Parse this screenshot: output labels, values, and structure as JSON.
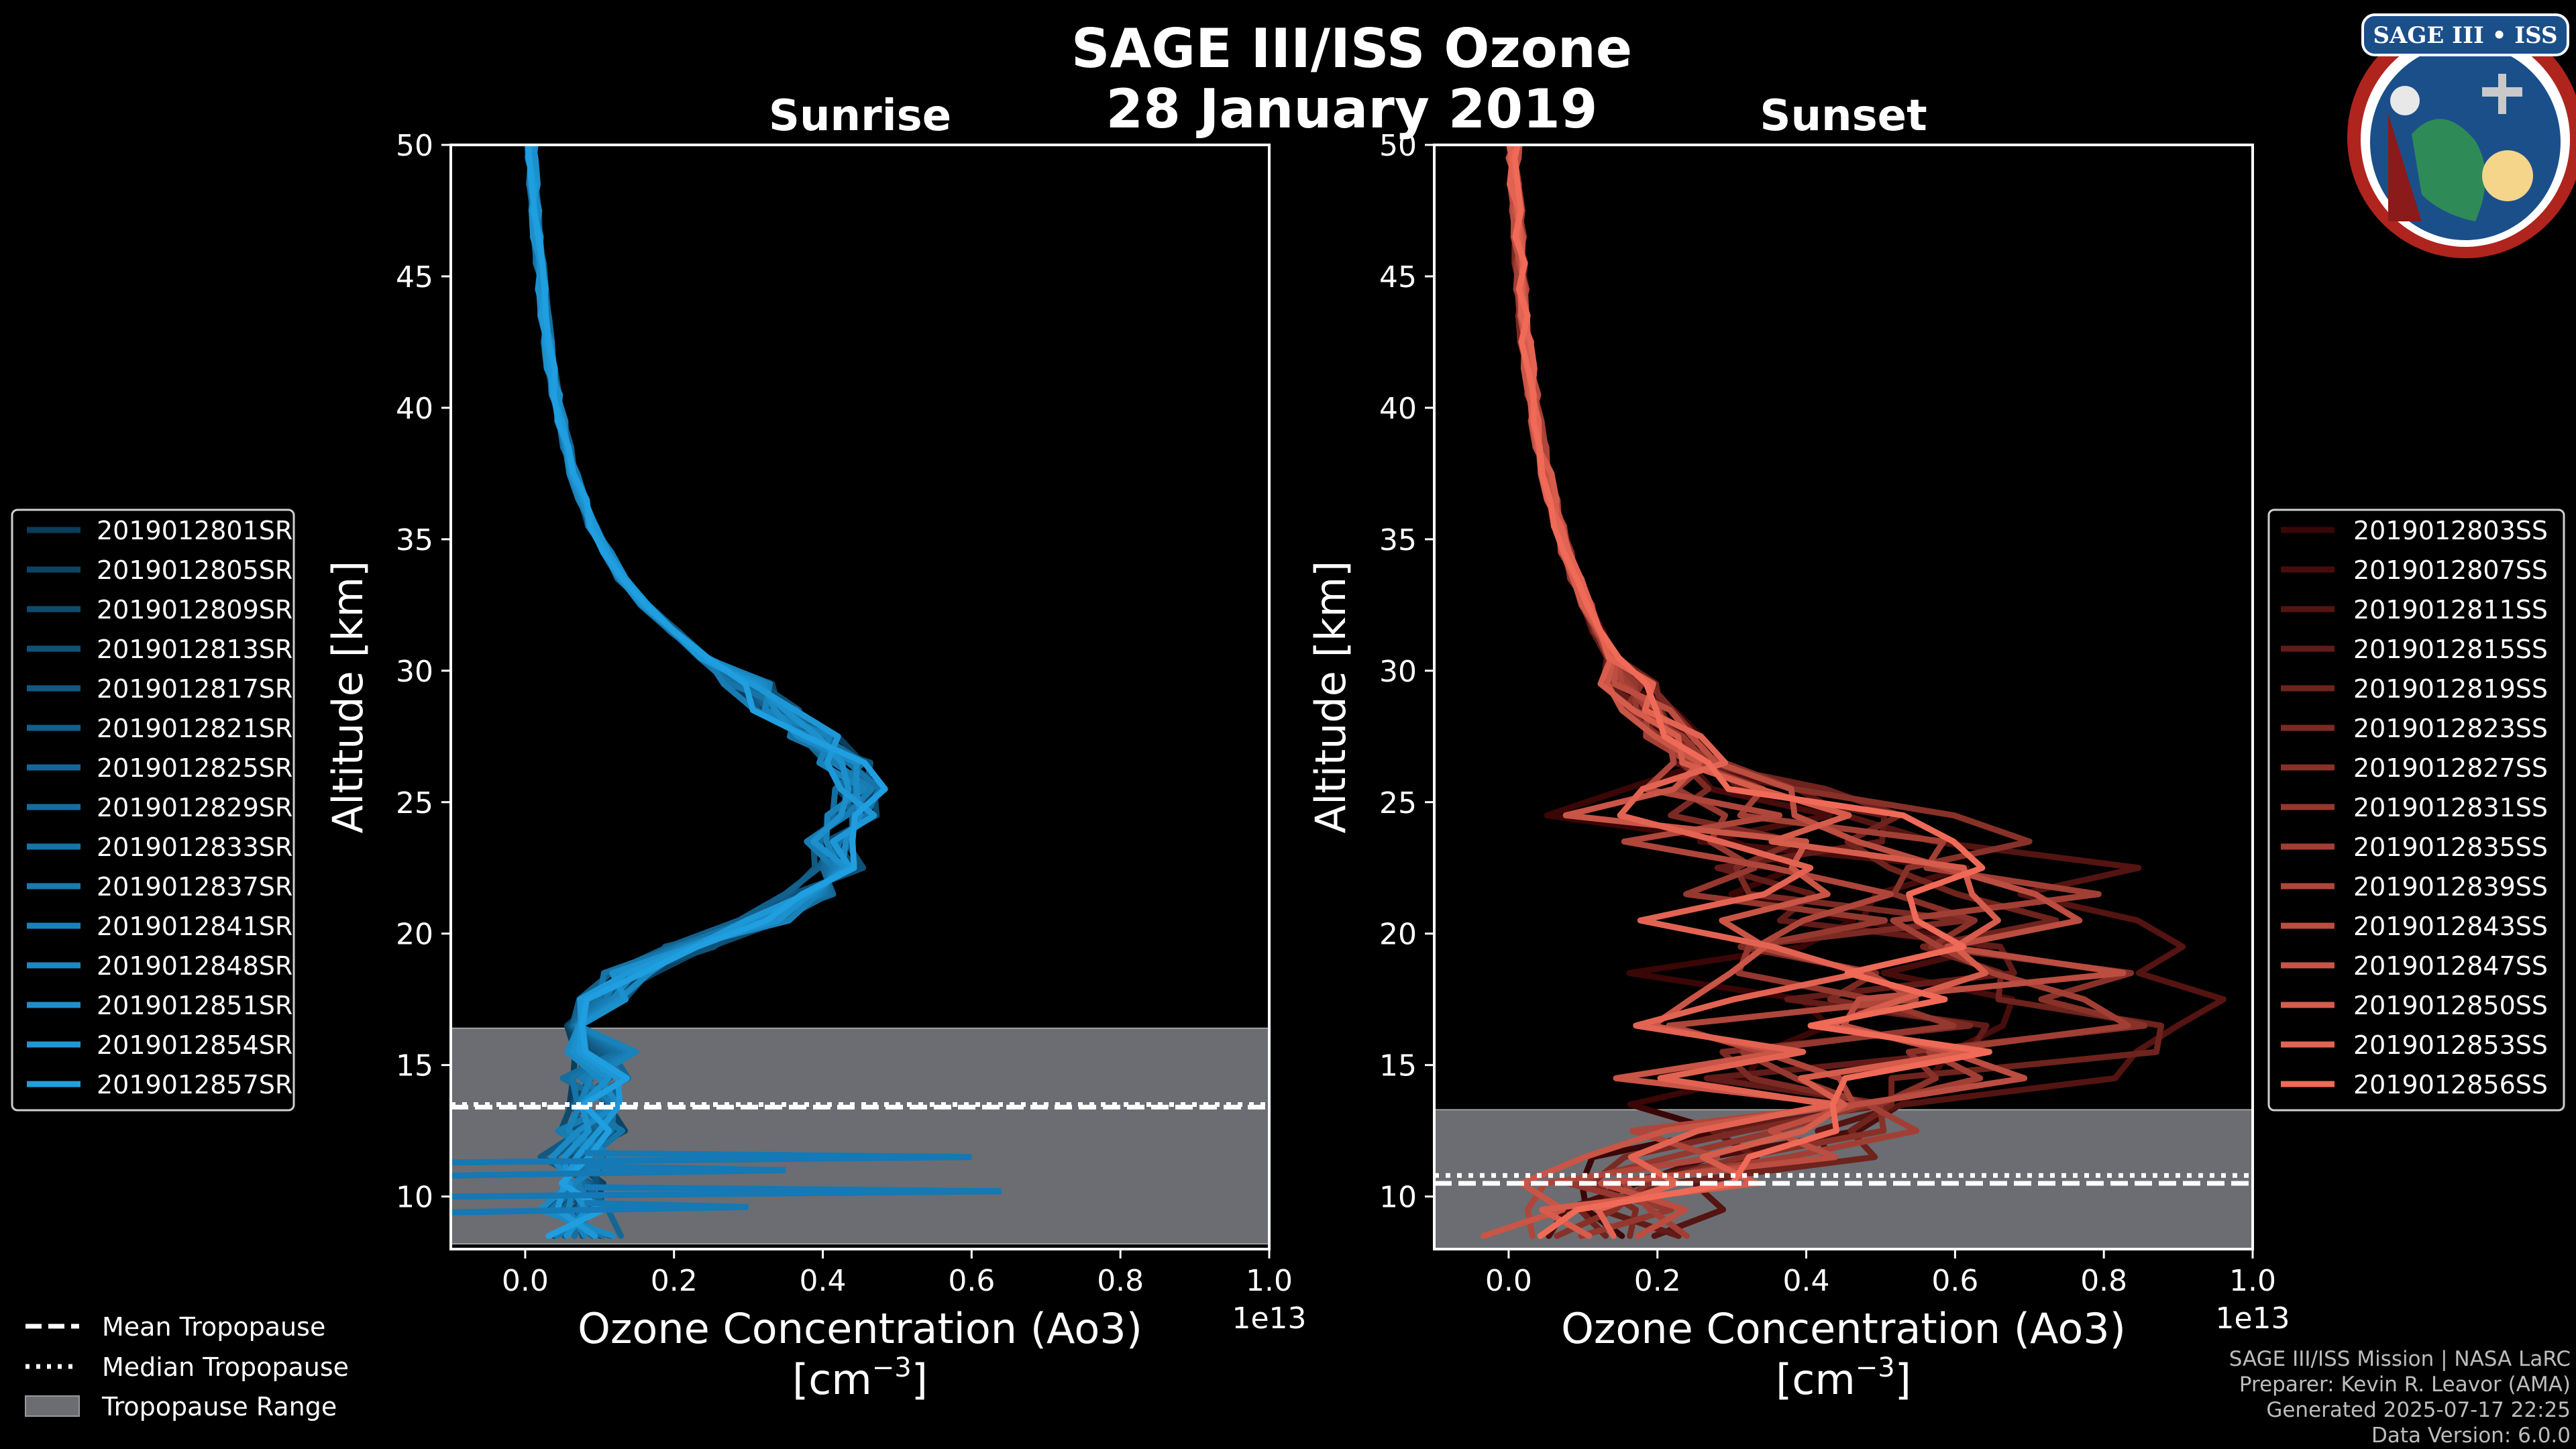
{
  "figure": {
    "title_line1": "SAGE III/ISS Ozone",
    "title_line2": "28 January 2019",
    "badge_text": "SAGE III • ISS",
    "credit": [
      "SAGE III/ISS Mission | NASA LaRC",
      "Preparer: Kevin R. Leavor (AMA)",
      "Generated 2025-07-17 22:25",
      "Data Version: 6.0.0"
    ],
    "tropopause_legend": [
      {
        "label": "Mean Tropopause",
        "style": "dashed"
      },
      {
        "label": "Median Tropopause",
        "style": "dotted"
      },
      {
        "label": "Tropopause Range",
        "style": "patch"
      }
    ]
  },
  "chart_data": [
    {
      "type": "line",
      "title": "Sunrise",
      "xlabel": "Ozone Concentration (Ao3)",
      "xlabel_units": "[cm",
      "xlabel_exp": "−3",
      "xlabel_close": "]",
      "ylabel": "Altitude [km]",
      "x_offset_label": "1e13",
      "xlim": [
        -0.1,
        1.0
      ],
      "ylim": [
        8,
        50
      ],
      "xticks": [
        0.0,
        0.2,
        0.4,
        0.6,
        0.8,
        1.0
      ],
      "xtick_labels": [
        "0.0",
        "0.2",
        "0.4",
        "0.6",
        "0.8",
        "1.0"
      ],
      "yticks": [
        10,
        15,
        20,
        25,
        30,
        35,
        40,
        45,
        50
      ],
      "ytick_labels": [
        "10",
        "15",
        "20",
        "25",
        "30",
        "35",
        "40",
        "45",
        "50"
      ],
      "tropopause": {
        "mean": 13.4,
        "median": 13.5,
        "range": [
          8.2,
          16.4
        ]
      },
      "colors": {
        "dark": "#0b3d5c",
        "light": "#1f9ee0"
      },
      "profile": {
        "altitude": [
          8.5,
          9.5,
          10.5,
          11.5,
          12.5,
          13.5,
          14.5,
          15.5,
          16.5,
          17.5,
          18.5,
          19.5,
          20.5,
          21.5,
          22.5,
          23.5,
          24.5,
          25.5,
          26.5,
          27.5,
          28.5,
          29.5,
          30.5,
          31.5,
          32.5,
          33.5,
          34.5,
          35.5,
          36.5,
          37.5,
          38.5,
          39.5,
          40.5,
          41.5,
          42.5,
          43.5,
          44.5,
          45.5,
          46.5,
          47.5,
          48.5,
          49.5,
          50.0
        ],
        "ozone": [
          0.08,
          0.07,
          0.08,
          0.07,
          0.09,
          0.08,
          0.09,
          0.1,
          0.08,
          0.1,
          0.14,
          0.22,
          0.32,
          0.38,
          0.42,
          0.41,
          0.44,
          0.45,
          0.43,
          0.39,
          0.34,
          0.3,
          0.24,
          0.2,
          0.16,
          0.13,
          0.11,
          0.09,
          0.077,
          0.065,
          0.056,
          0.048,
          0.041,
          0.035,
          0.03,
          0.026,
          0.022,
          0.019,
          0.016,
          0.013,
          0.011,
          0.009,
          0.008
        ]
      },
      "spikes": [
        {
          "altitude": 10.2,
          "ozone": 0.64
        },
        {
          "altitude": 11.5,
          "ozone": 0.6
        },
        {
          "altitude": 9.6,
          "ozone": 0.3
        },
        {
          "altitude": 11.0,
          "ozone": 0.35
        }
      ],
      "series": [
        {
          "name": "2019012801SR"
        },
        {
          "name": "2019012805SR"
        },
        {
          "name": "2019012809SR"
        },
        {
          "name": "2019012813SR"
        },
        {
          "name": "2019012817SR"
        },
        {
          "name": "2019012821SR"
        },
        {
          "name": "2019012825SR"
        },
        {
          "name": "2019012829SR"
        },
        {
          "name": "2019012833SR"
        },
        {
          "name": "2019012837SR"
        },
        {
          "name": "2019012841SR"
        },
        {
          "name": "2019012848SR"
        },
        {
          "name": "2019012851SR"
        },
        {
          "name": "2019012854SR"
        },
        {
          "name": "2019012857SR"
        }
      ]
    },
    {
      "type": "line",
      "title": "Sunset",
      "xlabel": "Ozone Concentration (Ao3)",
      "xlabel_units": "[cm",
      "xlabel_exp": "−3",
      "xlabel_close": "]",
      "ylabel": "Altitude [km]",
      "x_offset_label": "1e13",
      "xlim": [
        -0.1,
        1.0
      ],
      "ylim": [
        8,
        50
      ],
      "xticks": [
        0.0,
        0.2,
        0.4,
        0.6,
        0.8,
        1.0
      ],
      "xtick_labels": [
        "0.0",
        "0.2",
        "0.4",
        "0.6",
        "0.8",
        "1.0"
      ],
      "yticks": [
        10,
        15,
        20,
        25,
        30,
        35,
        40,
        45,
        50
      ],
      "ytick_labels": [
        "10",
        "15",
        "20",
        "25",
        "30",
        "35",
        "40",
        "45",
        "50"
      ],
      "tropopause": {
        "mean": 10.5,
        "median": 10.8,
        "range": [
          8.0,
          13.3
        ]
      },
      "colors": {
        "dark": "#3a0606",
        "light": "#f06a58"
      },
      "profile": {
        "altitude": [
          8.5,
          9.5,
          10.5,
          11.5,
          12.5,
          13.5,
          14.5,
          15.5,
          16.5,
          17.5,
          18.5,
          19.5,
          20.5,
          21.5,
          22.5,
          23.5,
          24.5,
          25.5,
          26.5,
          27.5,
          28.5,
          29.5,
          30.5,
          31.5,
          32.5,
          33.5,
          34.5,
          35.5,
          36.5,
          37.5,
          38.5,
          39.5,
          40.5,
          41.5,
          42.5,
          43.5,
          44.5,
          45.5,
          46.5,
          47.5,
          48.5,
          49.5,
          50.0
        ],
        "ozone": [
          0.12,
          0.15,
          0.2,
          0.28,
          0.36,
          0.42,
          0.48,
          0.52,
          0.54,
          0.56,
          0.56,
          0.55,
          0.54,
          0.52,
          0.48,
          0.42,
          0.36,
          0.3,
          0.26,
          0.22,
          0.19,
          0.16,
          0.14,
          0.12,
          0.105,
          0.09,
          0.078,
          0.068,
          0.058,
          0.05,
          0.043,
          0.037,
          0.032,
          0.027,
          0.023,
          0.02,
          0.017,
          0.015,
          0.013,
          0.011,
          0.009,
          0.008,
          0.007
        ]
      },
      "series": [
        {
          "name": "2019012803SS"
        },
        {
          "name": "2019012807SS"
        },
        {
          "name": "2019012811SS"
        },
        {
          "name": "2019012815SS"
        },
        {
          "name": "2019012819SS"
        },
        {
          "name": "2019012823SS"
        },
        {
          "name": "2019012827SS"
        },
        {
          "name": "2019012831SS"
        },
        {
          "name": "2019012835SS"
        },
        {
          "name": "2019012839SS"
        },
        {
          "name": "2019012843SS"
        },
        {
          "name": "2019012847SS"
        },
        {
          "name": "2019012850SS"
        },
        {
          "name": "2019012853SS"
        },
        {
          "name": "2019012856SS"
        }
      ]
    }
  ]
}
